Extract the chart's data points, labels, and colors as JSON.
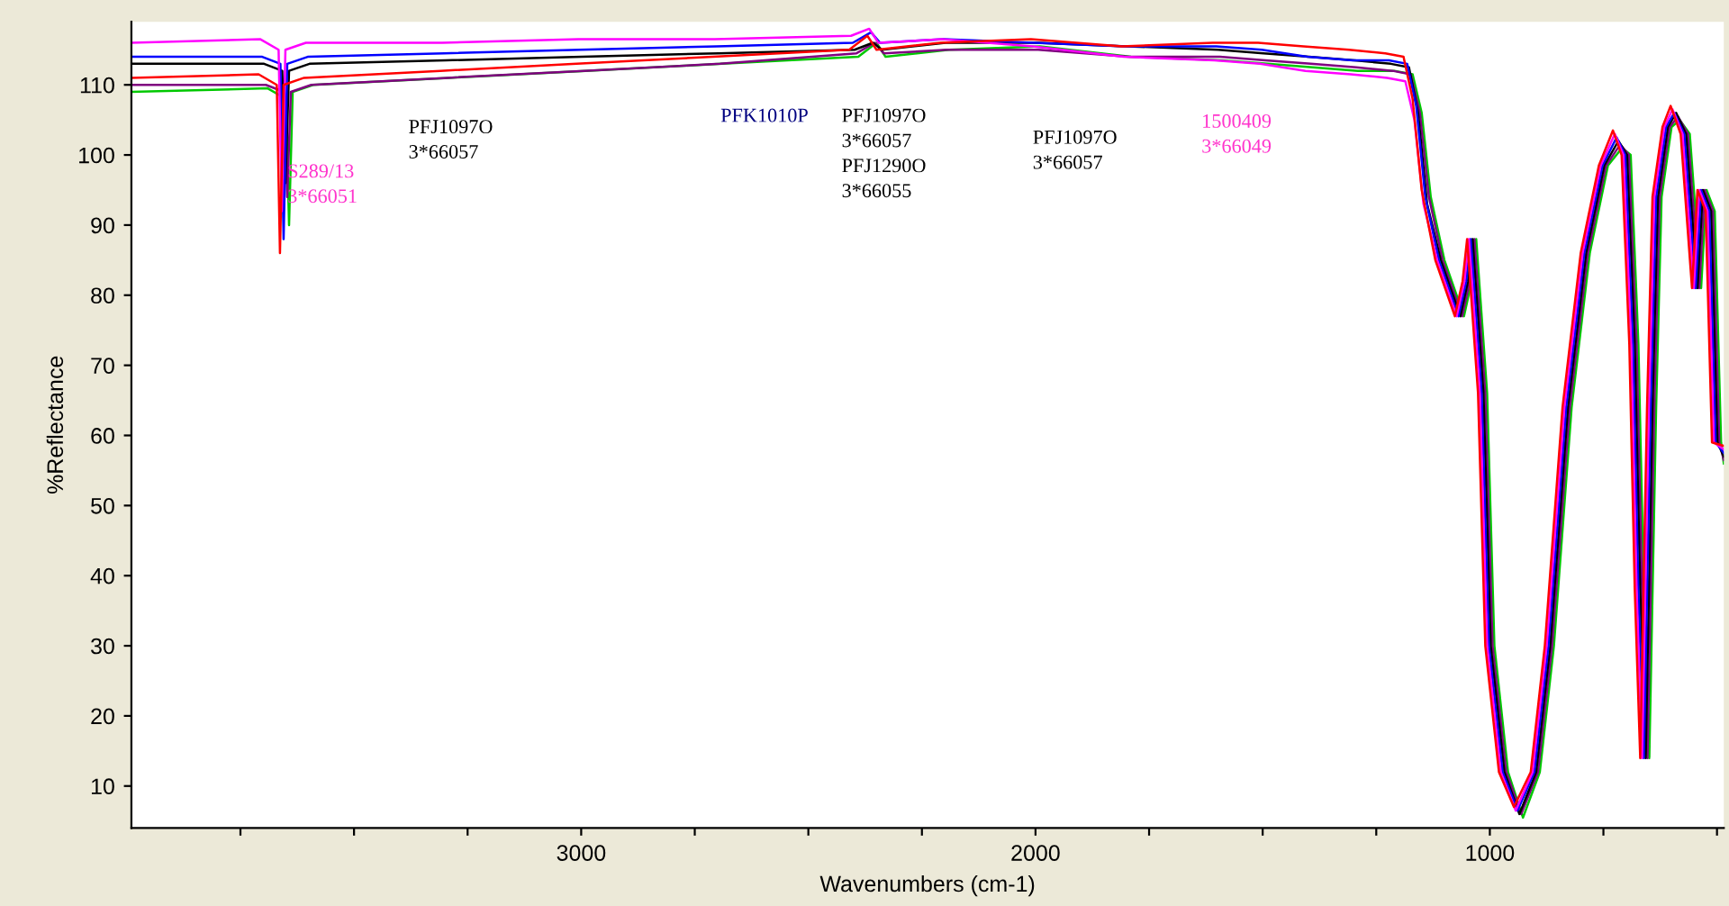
{
  "chart_data": {
    "type": "line",
    "xlabel": "Wavenumbers (cm-1)",
    "ylabel": "%Reflectance",
    "xlim": [
      3990,
      485
    ],
    "ylim": [
      4,
      119
    ],
    "xticks": [
      {
        "value": 3750,
        "label": null
      },
      {
        "value": 3500,
        "label": null
      },
      {
        "value": 3250,
        "label": null
      },
      3000,
      {
        "value": 2750,
        "label": null
      },
      {
        "value": 2500,
        "label": null
      },
      {
        "value": 2250,
        "label": null
      },
      2000,
      {
        "value": 1750,
        "label": null
      },
      {
        "value": 1500,
        "label": null
      },
      {
        "value": 1250,
        "label": null
      },
      1000,
      {
        "value": 750,
        "label": null
      },
      {
        "value": 500,
        "label": null
      }
    ],
    "yticks": [
      10,
      20,
      30,
      40,
      50,
      60,
      70,
      80,
      90,
      100,
      110
    ],
    "grid": false,
    "legend": false,
    "marker": "none",
    "line_style": "solid",
    "series": [
      {
        "color": "#00c800",
        "x": [
          3990,
          3690,
          3650,
          3643,
          3635,
          3590,
          3290,
          2990,
          2690,
          2390,
          2350,
          2330,
          2190,
          1990,
          1790,
          1590,
          1490,
          1390,
          1290,
          1210,
          1170,
          1150,
          1130,
          1100,
          1057,
          1040,
          1030,
          1006,
          990,
          960,
          927,
          890,
          859,
          820,
          780,
          740,
          709,
          690,
          673,
          661,
          649,
          634,
          622,
          600,
          582,
          560,
          535,
          523,
          505,
          491,
          485
        ],
        "values": [
          109,
          109.5,
          108,
          90,
          109,
          110,
          111,
          112,
          113,
          114,
          116,
          114,
          115,
          115.5,
          114,
          113.5,
          113,
          112.5,
          112,
          112,
          111.5,
          106,
          94,
          85,
          77,
          82,
          88,
          66,
          30,
          12,
          5.5,
          12,
          30,
          64,
          86,
          98.5,
          101,
          100,
          73,
          38,
          14,
          64,
          94,
          104,
          105,
          103,
          81,
          95,
          92,
          59,
          56
        ]
      },
      {
        "color": "#800080",
        "x": [
          3990,
          3694,
          3654,
          3647,
          3639,
          3594,
          3294,
          2994,
          2694,
          2394,
          2354,
          2334,
          2194,
          1994,
          1794,
          1594,
          1494,
          1394,
          1294,
          1214,
          1174,
          1154,
          1134,
          1104,
          1061,
          1044,
          1034,
          1010,
          994,
          964,
          931,
          894,
          863,
          824,
          784,
          744,
          713,
          694,
          677,
          665,
          653,
          638,
          626,
          604,
          586,
          564,
          539,
          527,
          509,
          495,
          485
        ],
        "values": [
          110,
          110,
          109,
          94,
          109,
          110,
          111,
          112,
          113,
          114.5,
          116,
          114.5,
          115,
          115,
          114,
          114,
          113.5,
          113,
          112.5,
          112,
          111.5,
          106,
          94,
          85,
          77,
          82,
          88,
          66,
          30,
          12,
          6,
          12,
          30,
          64,
          86,
          98.5,
          101.5,
          100,
          73,
          38,
          14,
          64,
          94,
          104,
          105.5,
          103,
          81,
          95,
          92,
          59,
          56.5
        ]
      },
      {
        "color": "#000000",
        "x": [
          3990,
          3698,
          3658,
          3651,
          3643,
          3598,
          3298,
          2998,
          2698,
          2398,
          2358,
          2338,
          2198,
          1998,
          1798,
          1598,
          1498,
          1398,
          1298,
          1218,
          1178,
          1158,
          1138,
          1108,
          1065,
          1048,
          1038,
          1014,
          998,
          968,
          935,
          898,
          867,
          828,
          788,
          748,
          717,
          698,
          681,
          669,
          657,
          642,
          630,
          608,
          590,
          568,
          543,
          531,
          513,
          499,
          485
        ],
        "values": [
          113,
          113,
          112,
          96,
          112,
          113,
          113.5,
          114,
          114.5,
          115,
          116,
          115,
          116,
          116,
          115.5,
          115,
          114.5,
          114,
          113.5,
          113,
          112.5,
          106,
          93,
          85,
          77,
          82,
          88,
          66,
          30,
          12,
          6,
          12,
          30,
          64,
          86,
          98.5,
          102,
          100,
          73,
          38,
          14,
          64,
          94,
          104,
          106,
          103,
          81,
          95,
          92,
          59,
          57
        ]
      },
      {
        "color": "#0000ff",
        "x": [
          3990,
          3702,
          3662,
          3655,
          3647,
          3602,
          3302,
          3002,
          2702,
          2402,
          2362,
          2342,
          2202,
          2002,
          1802,
          1602,
          1502,
          1402,
          1302,
          1222,
          1182,
          1162,
          1142,
          1112,
          1069,
          1052,
          1042,
          1018,
          1002,
          972,
          939,
          902,
          871,
          832,
          792,
          752,
          721,
          702,
          685,
          673,
          661,
          646,
          634,
          612,
          594,
          572,
          547,
          535,
          517,
          503,
          485
        ],
        "values": [
          114,
          114,
          113,
          88,
          113,
          114,
          114.5,
          115,
          115.5,
          116,
          117.5,
          116,
          116.5,
          116,
          115.5,
          115.5,
          115,
          114,
          113.5,
          113.5,
          113,
          107,
          94,
          85,
          77,
          82,
          88,
          66,
          30,
          12,
          6.5,
          12,
          30,
          64,
          86,
          98.5,
          102.5,
          100,
          73,
          38,
          14,
          64,
          94,
          104,
          106,
          103,
          81,
          95,
          92,
          59,
          57.5
        ]
      },
      {
        "color": "#ff00ff",
        "x": [
          3990,
          3706,
          3666,
          3659,
          3651,
          3606,
          3306,
          3006,
          2706,
          2406,
          2366,
          2346,
          2206,
          2006,
          1806,
          1606,
          1506,
          1406,
          1306,
          1226,
          1186,
          1166,
          1146,
          1116,
          1073,
          1056,
          1046,
          1022,
          1006,
          976,
          943,
          906,
          875,
          836,
          796,
          756,
          725,
          706,
          689,
          677,
          665,
          650,
          638,
          616,
          598,
          576,
          551,
          539,
          521,
          507,
          485
        ],
        "values": [
          116,
          116.5,
          115,
          92,
          115,
          116,
          116,
          116.5,
          116.5,
          117,
          118,
          116,
          116.5,
          115.5,
          114,
          113.5,
          113,
          112,
          111.5,
          111,
          110.5,
          105,
          93,
          85,
          77,
          82,
          88,
          66,
          30,
          12,
          6.5,
          12,
          30,
          64,
          86,
          98.5,
          103,
          100,
          73,
          38,
          14,
          64,
          94,
          104,
          106.5,
          103,
          81,
          95,
          92,
          59,
          58
        ]
      },
      {
        "color": "#ff0000",
        "x": [
          3990,
          3710,
          3670,
          3663,
          3655,
          3610,
          3310,
          3010,
          2710,
          2410,
          2370,
          2350,
          2210,
          2010,
          1810,
          1610,
          1510,
          1410,
          1310,
          1230,
          1190,
          1170,
          1150,
          1120,
          1077,
          1060,
          1050,
          1026,
          1010,
          980,
          947,
          910,
          879,
          840,
          800,
          760,
          729,
          710,
          693,
          681,
          669,
          654,
          642,
          620,
          602,
          580,
          555,
          543,
          525,
          511,
          485
        ],
        "values": [
          111,
          111.5,
          110,
          86,
          110,
          111,
          112,
          113,
          114,
          115,
          117,
          115,
          116,
          116.5,
          115.5,
          116,
          116,
          115.5,
          115,
          114.5,
          114,
          108,
          95,
          85,
          77,
          82,
          88,
          66,
          30,
          12,
          7,
          12,
          30,
          64,
          86,
          98.5,
          103.5,
          100,
          73,
          38,
          14,
          64,
          94,
          104,
          107,
          103,
          81,
          95,
          92,
          59,
          58.5
        ]
      }
    ],
    "annotations": [
      "S289/13\n3*66051",
      "PFJ1097O\n3*66057",
      "PFK1010P",
      "PFJ1097O\n3*66057\nPFJ1290O\n3*66055",
      "PFJ1097O\n3*66057",
      "1500409\n3*66049"
    ]
  }
}
